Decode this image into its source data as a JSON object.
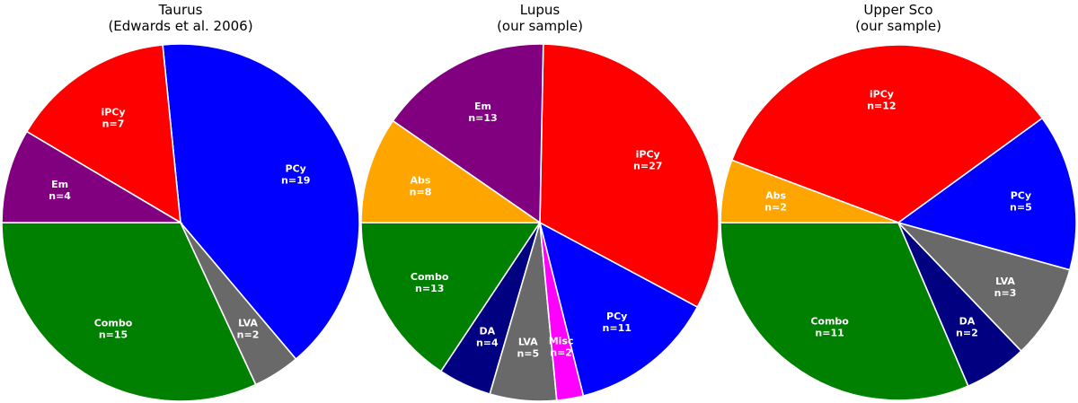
{
  "chart_data": [
    {
      "type": "pie",
      "title": [
        "Taurus",
        "(Edwards et al. 2006)"
      ],
      "slices": [
        {
          "label": "Combo",
          "n": 15,
          "color": "#008000"
        },
        {
          "label": "LVA",
          "n": 2,
          "color": "#696969"
        },
        {
          "label": "PCy",
          "n": 19,
          "color": "#0000ff"
        },
        {
          "label": "iPCy",
          "n": 7,
          "color": "#ff0000"
        },
        {
          "label": "Em",
          "n": 4,
          "color": "#800080"
        }
      ]
    },
    {
      "type": "pie",
      "title": [
        "Lupus",
        "(our sample)"
      ],
      "slices": [
        {
          "label": "Combo",
          "n": 13,
          "color": "#008000"
        },
        {
          "label": "DA",
          "n": 4,
          "color": "#000080"
        },
        {
          "label": "LVA",
          "n": 5,
          "color": "#696969"
        },
        {
          "label": "Misc",
          "n": 2,
          "color": "#ff00ff"
        },
        {
          "label": "PCy",
          "n": 11,
          "color": "#0000ff"
        },
        {
          "label": "iPCy",
          "n": 27,
          "color": "#ff0000"
        },
        {
          "label": "Em",
          "n": 13,
          "color": "#800080"
        },
        {
          "label": "Abs",
          "n": 8,
          "color": "#ffa500"
        }
      ]
    },
    {
      "type": "pie",
      "title": [
        "Upper Sco",
        "(our sample)"
      ],
      "slices": [
        {
          "label": "Combo",
          "n": 11,
          "color": "#008000"
        },
        {
          "label": "DA",
          "n": 2,
          "color": "#000080"
        },
        {
          "label": "LVA",
          "n": 3,
          "color": "#696969"
        },
        {
          "label": "PCy",
          "n": 5,
          "color": "#0000ff"
        },
        {
          "label": "iPCy",
          "n": 12,
          "color": "#ff0000"
        },
        {
          "label": "Abs",
          "n": 2,
          "color": "#ffa500"
        }
      ]
    }
  ]
}
